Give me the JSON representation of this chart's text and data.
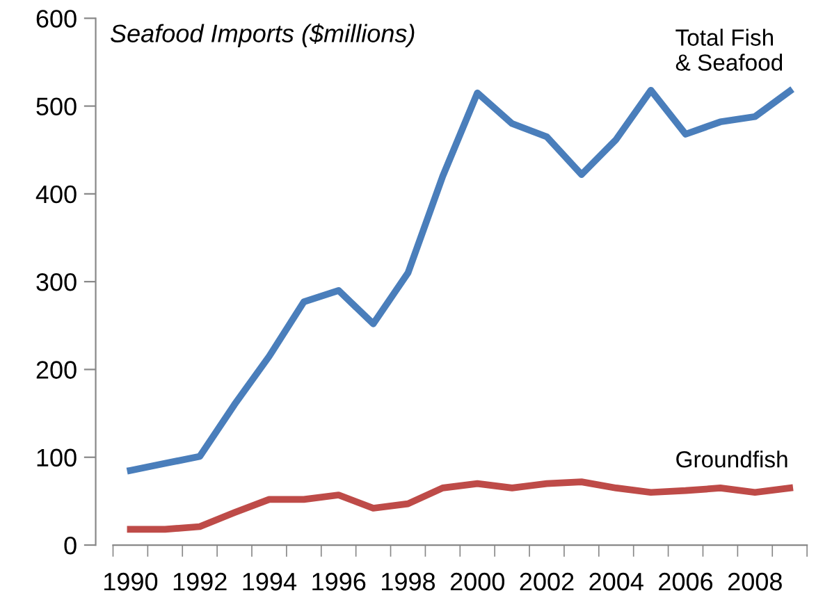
{
  "chart_data": {
    "type": "line",
    "title": "Seafood Imports ($millions)",
    "categories": [
      "1990",
      null,
      "1992",
      null,
      "1994",
      null,
      "1996",
      null,
      "1998",
      null,
      "2000",
      null,
      "2002",
      null,
      "2004",
      null,
      "2006",
      null,
      "2008",
      null
    ],
    "series": [
      {
        "name": "Total Fish\n& Seafood",
        "color": "#4a7ebb",
        "values": [
          85,
          93,
          101,
          160,
          215,
          277,
          290,
          252,
          310,
          420,
          515,
          480,
          465,
          422,
          462,
          518,
          468,
          482,
          488,
          517
        ]
      },
      {
        "name": "Groundfish",
        "color": "#be4b48",
        "values": [
          18,
          18,
          21,
          37,
          52,
          52,
          57,
          42,
          47,
          65,
          70,
          65,
          70,
          72,
          65,
          60,
          62,
          65,
          60,
          65
        ]
      }
    ],
    "ylim": [
      0,
      600
    ],
    "yticks": [
      0,
      100,
      200,
      300,
      400,
      500,
      600
    ],
    "grid": false,
    "legend": false,
    "marker": "none",
    "line_style": "solid"
  }
}
